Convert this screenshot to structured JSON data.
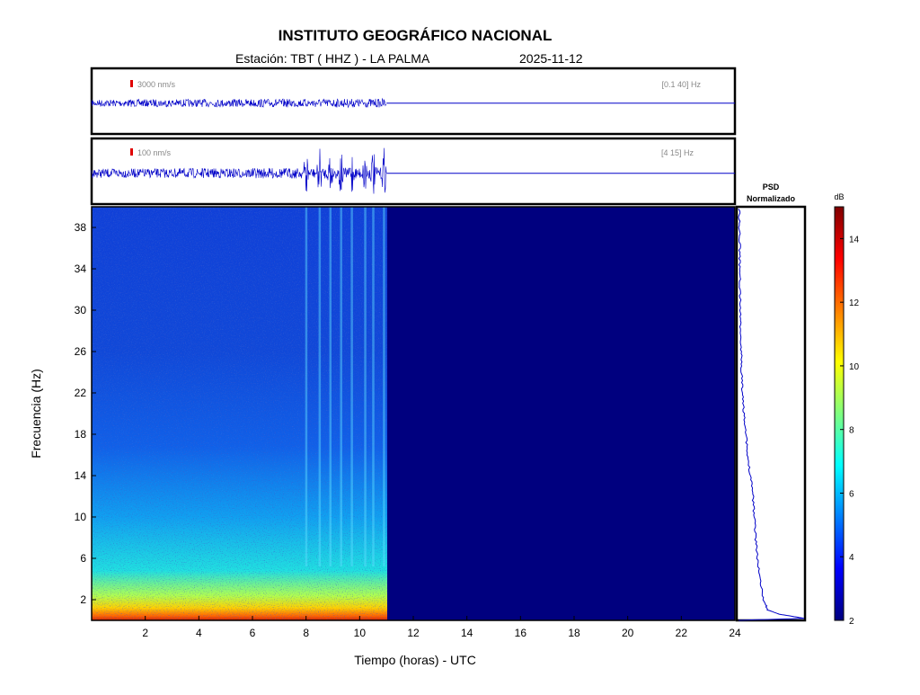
{
  "header": {
    "title": "INSTITUTO GEOGRÁFICO NACIONAL",
    "station_line": "Estación:  TBT ( HHZ ) - LA PALMA",
    "date": "2025-11-12"
  },
  "chart_data": [
    {
      "type": "line",
      "name": "seismogram-broadband",
      "scale_label": "3000 nm/s",
      "band_label": "[0.1 40] Hz",
      "data_end_hour": 11.0,
      "xlim": [
        0,
        24
      ],
      "bursts": []
    },
    {
      "type": "line",
      "name": "seismogram-filtered",
      "scale_label": "100 nm/s",
      "band_label": "[4 15] Hz",
      "data_end_hour": 11.0,
      "xlim": [
        0,
        24
      ],
      "bursts": [
        8.0,
        8.5,
        8.9,
        9.3,
        9.7,
        10.2,
        10.5,
        10.9
      ]
    },
    {
      "type": "heatmap",
      "name": "spectrogram",
      "xlabel": "Tiempo (horas) - UTC",
      "ylabel": "Frecuencia  (Hz)",
      "xlim": [
        0,
        24
      ],
      "ylim": [
        0,
        40
      ],
      "x_ticks": [
        "2",
        "4",
        "6",
        "8",
        "10",
        "12",
        "14",
        "16",
        "18",
        "20",
        "22",
        "24"
      ],
      "y_ticks": [
        "2",
        "6",
        "10",
        "14",
        "18",
        "22",
        "26",
        "30",
        "34",
        "38"
      ],
      "data_end_hour": 11.0
    },
    {
      "type": "line",
      "name": "psd-normalizado",
      "title": "PSD\nNormalizado",
      "title_lines": [
        "PSD",
        "Normalizado"
      ],
      "xlim": [
        0,
        1
      ],
      "ylim": [
        0,
        40
      ],
      "points": [
        [
          0.0,
          0.0
        ],
        [
          1.0,
          0.2
        ],
        [
          0.62,
          0.6
        ],
        [
          0.45,
          1.0
        ],
        [
          0.38,
          2.0
        ],
        [
          0.33,
          4.0
        ],
        [
          0.29,
          6.0
        ],
        [
          0.26,
          8.0
        ],
        [
          0.24,
          10.0
        ],
        [
          0.22,
          12.0
        ],
        [
          0.18,
          14.0
        ],
        [
          0.14,
          16.0
        ],
        [
          0.11,
          18.0
        ],
        [
          0.08,
          20.0
        ],
        [
          0.06,
          22.0
        ],
        [
          0.05,
          24.0
        ],
        [
          0.04,
          26.0
        ],
        [
          0.03,
          28.0
        ],
        [
          0.03,
          30.0
        ],
        [
          0.02,
          32.0
        ],
        [
          0.02,
          34.0
        ],
        [
          0.02,
          36.0
        ],
        [
          0.01,
          38.0
        ],
        [
          0.01,
          40.0
        ]
      ]
    }
  ],
  "colorbar": {
    "unit": "dB",
    "ticks": [
      "2",
      "4",
      "6",
      "8",
      "10",
      "12",
      "14"
    ],
    "range": [
      2,
      15
    ]
  },
  "colors": {
    "trace": "#0000c8",
    "frame": "#000000",
    "noise_fill": "#00007f",
    "scale_bar": "#e00000",
    "label_gray": "#888888"
  }
}
